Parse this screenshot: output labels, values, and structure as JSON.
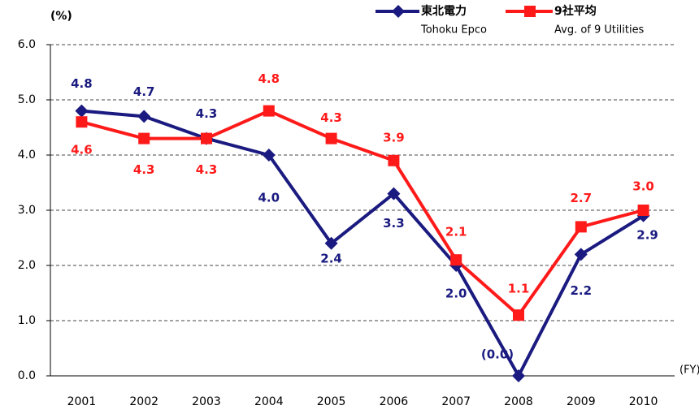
{
  "chart_data": {
    "type": "line",
    "y_unit": "(%)",
    "x_unit": "(FY)",
    "categories": [
      "2001",
      "2002",
      "2003",
      "2004",
      "2005",
      "2006",
      "2007",
      "2008",
      "2009",
      "2010"
    ],
    "series": [
      {
        "name": "東北電力",
        "name_en": "Tohoku Epco",
        "color": "#1a1a80",
        "marker": "diamond",
        "values": [
          4.8,
          4.7,
          4.3,
          4.0,
          2.4,
          3.3,
          2.0,
          0.0,
          2.2,
          2.9
        ],
        "value_labels": [
          "4.8",
          "4.7",
          "4.3",
          "4.0",
          "2.4",
          "3.3",
          "2.0",
          "(0.0)",
          "2.2",
          "2.9"
        ]
      },
      {
        "name": "9社平均",
        "name_en": "Avg. of 9 Utilities",
        "color": "#ff1a1a",
        "marker": "square",
        "values": [
          4.6,
          4.3,
          4.3,
          4.8,
          4.3,
          3.9,
          2.1,
          1.1,
          2.7,
          3.0
        ],
        "value_labels": [
          "4.6",
          "4.3",
          "4.3",
          "4.8",
          "4.3",
          "3.9",
          "2.1",
          "1.1",
          "2.7",
          "3.0"
        ]
      }
    ],
    "ylim": [
      0,
      6
    ],
    "yticks": [
      {
        "value": 0,
        "label": "0.0"
      },
      {
        "value": 1,
        "label": "1.0"
      },
      {
        "value": 2,
        "label": "2.0"
      },
      {
        "value": 3,
        "label": "3.0"
      },
      {
        "value": 4,
        "label": "4.0"
      },
      {
        "value": 5,
        "label": "5.0"
      },
      {
        "value": 6,
        "label": "6.0"
      }
    ],
    "grid": true
  }
}
